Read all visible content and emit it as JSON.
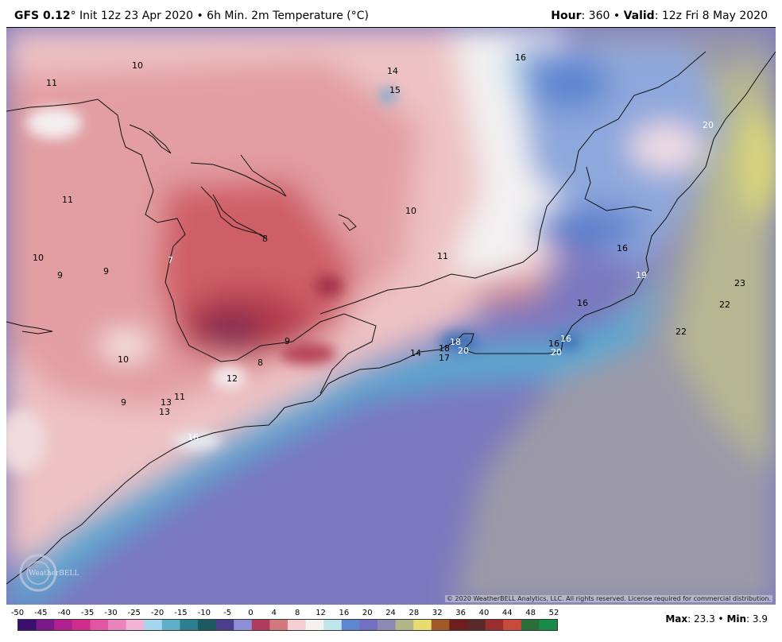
{
  "header": {
    "model": "GFS 0.12",
    "init": "° Init 12z 23 Apr 2020 • 6h Min. 2m Temperature (°C)",
    "hour_label": "Hour",
    "hour_value": ": 360 • ",
    "valid_label": "Valid",
    "valid_value": ": 12z Fri 8 May 2020"
  },
  "map": {
    "copyright": "© 2020 WeatherBELL Analytics, LLC. All rights reserved. License required for commercial distribution.",
    "logo_text": "WeatherBELL",
    "labels": [
      {
        "id": "l1",
        "text": "10"
      },
      {
        "id": "l2",
        "text": "11"
      },
      {
        "id": "l3",
        "text": "14"
      },
      {
        "id": "l4",
        "text": "15"
      },
      {
        "id": "l5",
        "text": "16"
      },
      {
        "id": "l6",
        "text": "20"
      },
      {
        "id": "l7",
        "text": "11"
      },
      {
        "id": "l8",
        "text": "10"
      },
      {
        "id": "l9",
        "text": "8"
      },
      {
        "id": "l10",
        "text": "7"
      },
      {
        "id": "l11",
        "text": "10"
      },
      {
        "id": "l12",
        "text": "9"
      },
      {
        "id": "l13",
        "text": "9"
      },
      {
        "id": "l14",
        "text": "11"
      },
      {
        "id": "l15",
        "text": "16"
      },
      {
        "id": "l16",
        "text": "19"
      },
      {
        "id": "l17",
        "text": "23"
      },
      {
        "id": "l18",
        "text": "22"
      },
      {
        "id": "l19",
        "text": "16"
      },
      {
        "id": "l20",
        "text": "22"
      },
      {
        "id": "l21",
        "text": "9"
      },
      {
        "id": "l22",
        "text": "8"
      },
      {
        "id": "l23",
        "text": "10"
      },
      {
        "id": "l24",
        "text": "12"
      },
      {
        "id": "l25",
        "text": "14"
      },
      {
        "id": "l26",
        "text": "18"
      },
      {
        "id": "l27",
        "text": "17"
      },
      {
        "id": "l28",
        "text": "18"
      },
      {
        "id": "l29",
        "text": "20"
      },
      {
        "id": "l30",
        "text": "16"
      },
      {
        "id": "l31",
        "text": "16"
      },
      {
        "id": "l32",
        "text": "20"
      },
      {
        "id": "l33",
        "text": "9"
      },
      {
        "id": "l34",
        "text": "13"
      },
      {
        "id": "l35",
        "text": "11"
      },
      {
        "id": "l36",
        "text": "13"
      },
      {
        "id": "l37",
        "text": "16"
      }
    ]
  },
  "scale": {
    "ticks": [
      "-50",
      "-45",
      "-40",
      "-35",
      "-30",
      "-25",
      "-20",
      "-15",
      "-10",
      "-5",
      "0",
      "4",
      "8",
      "12",
      "16",
      "20",
      "24",
      "28",
      "32",
      "36",
      "40",
      "44",
      "48",
      "52"
    ],
    "colors": [
      "#3a0f6e",
      "#7a1a8a",
      "#b0208f",
      "#d02c8e",
      "#e255a3",
      "#ea84be",
      "#f1b4d6",
      "#a4d6ee",
      "#5fb0c9",
      "#2c7f8e",
      "#1d5a5f",
      "#4a3f8f",
      "#8e8ed6",
      "#b13b5c",
      "#d3797e",
      "#f5d0d2",
      "#f4f1f1",
      "#bfe6ec",
      "#5f86d0",
      "#7370c4",
      "#8c8ab0",
      "#b3b58a",
      "#e6dc6f",
      "#a05a2a",
      "#701d1d",
      "#5a2a2a",
      "#9a2d2d",
      "#c74a3a",
      "#2a6f3a",
      "#1a8a4a"
    ]
  },
  "footer": {
    "max_label": "Max",
    "max_value": ": 23.3 • ",
    "min_label": "Min",
    "min_value": ": 3.9"
  }
}
